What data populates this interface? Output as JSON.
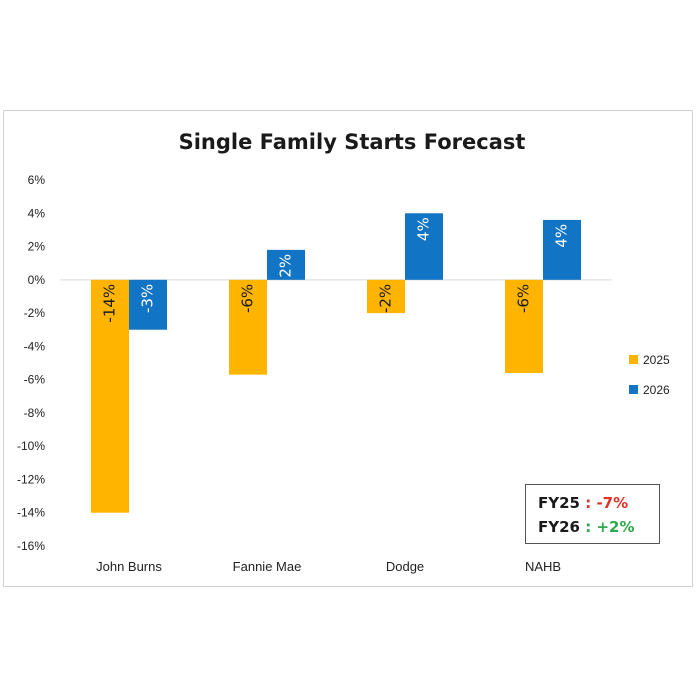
{
  "chart_data": {
    "type": "bar",
    "title": "Single Family Starts Forecast",
    "categories": [
      "John Burns",
      "Fannie Mae",
      "Dodge",
      "NAHB"
    ],
    "series": [
      {
        "name": "2025",
        "color": "#ffb400",
        "values": [
          -14,
          -5.7,
          -2,
          -5.6
        ],
        "labels": [
          "-14%",
          "-6%",
          "-2%",
          "-6%"
        ]
      },
      {
        "name": "2026",
        "color": "#1274c4",
        "values": [
          -3,
          1.8,
          4,
          3.6
        ],
        "labels": [
          "-3%",
          "2%",
          "4%",
          "4%"
        ]
      }
    ],
    "ylim": [
      -16,
      6
    ],
    "yticks": [
      6,
      4,
      2,
      0,
      -2,
      -4,
      -6,
      -8,
      -10,
      -12,
      -14,
      -16
    ],
    "ytick_labels": [
      "6%",
      "4%",
      "2%",
      "0%",
      "-2%",
      "-4%",
      "-6%",
      "-8%",
      "-10%",
      "-12%",
      "-14%",
      "-16%"
    ],
    "legend_position": "right",
    "grid": false
  },
  "summary": {
    "fy25_label": "FY25",
    "fy25_sep": " : ",
    "fy25_value": "-7%",
    "fy26_label": "FY26",
    "fy26_sep": " : ",
    "fy26_value": "+2%"
  }
}
